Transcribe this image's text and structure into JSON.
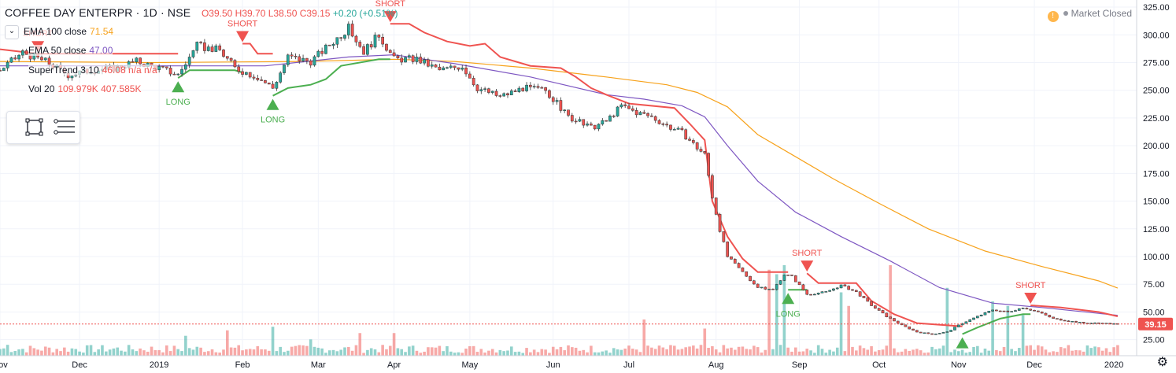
{
  "header": {
    "symbol": "COFFEE DAY ENTERPR · 1D · NSE",
    "open": "O39.50",
    "high": "H39.70",
    "low": "L38.50",
    "close": "C39.15",
    "change": "+0.20 (+0.51%)"
  },
  "legend": [
    {
      "label": "EMA 100 close",
      "value": "71.54",
      "color": "#f7a21b"
    },
    {
      "label": "EMA 50 close",
      "value": "47.00",
      "color": "#7e57c2"
    },
    {
      "label": "SuperTrend 3 10",
      "value": "46.08 n/a n/a",
      "color": "#ef5350"
    },
    {
      "label": "Vol 20",
      "value": "109.979K 407.585K",
      "color": "#ef5350"
    }
  ],
  "status": {
    "label": "Market Closed"
  },
  "colors": {
    "up": "#26a69a",
    "down": "#ef5350",
    "ema100": "#f7a21b",
    "ema50": "#7e57c2",
    "st_up": "#4caf50",
    "st_down": "#ef5350"
  },
  "icons": [
    "chevron-down-icon",
    "rectangle-tool-icon",
    "lines-tool-icon",
    "warning-icon",
    "gear-icon"
  ],
  "chart_data": {
    "type": "candlestick",
    "price_axis": {
      "min": 12,
      "max": 330,
      "ticks": [
        25,
        50,
        75,
        100,
        125,
        150,
        175,
        200,
        225,
        250,
        275,
        300,
        325
      ],
      "tick_labels": [
        "25.00",
        "50.00",
        "75.00",
        "100.00",
        "125.00",
        "150.00",
        "175.00",
        "200.00",
        "225.00",
        "250.00",
        "275.00",
        "300.00",
        "325.00"
      ]
    },
    "last_price": {
      "value": 39.15,
      "label": "39.15"
    },
    "time_axis": [
      {
        "label": "Nov",
        "t": 0
      },
      {
        "label": "Dec",
        "t": 21
      },
      {
        "label": "2019",
        "t": 42
      },
      {
        "label": "Feb",
        "t": 64
      },
      {
        "label": "Mar",
        "t": 84
      },
      {
        "label": "Apr",
        "t": 104
      },
      {
        "label": "May",
        "t": 124
      },
      {
        "label": "Jun",
        "t": 146
      },
      {
        "label": "Jul",
        "t": 166
      },
      {
        "label": "Aug",
        "t": 189
      },
      {
        "label": "Sep",
        "t": 211
      },
      {
        "label": "Oct",
        "t": 232
      },
      {
        "label": "Nov",
        "t": 253
      },
      {
        "label": "Dec",
        "t": 273
      },
      {
        "label": "2020",
        "t": 294
      }
    ],
    "t_max": 300,
    "price_series": [
      {
        "t": 0,
        "p": 268
      },
      {
        "t": 6,
        "p": 284
      },
      {
        "t": 12,
        "p": 276
      },
      {
        "t": 18,
        "p": 264
      },
      {
        "t": 24,
        "p": 268
      },
      {
        "t": 30,
        "p": 270
      },
      {
        "t": 36,
        "p": 276
      },
      {
        "t": 42,
        "p": 270
      },
      {
        "t": 47,
        "p": 264
      },
      {
        "t": 52,
        "p": 290
      },
      {
        "t": 58,
        "p": 286
      },
      {
        "t": 62,
        "p": 270
      },
      {
        "t": 68,
        "p": 262
      },
      {
        "t": 72,
        "p": 252
      },
      {
        "t": 76,
        "p": 280
      },
      {
        "t": 82,
        "p": 276
      },
      {
        "t": 86,
        "p": 288
      },
      {
        "t": 92,
        "p": 306
      },
      {
        "t": 96,
        "p": 285
      },
      {
        "t": 100,
        "p": 300
      },
      {
        "t": 104,
        "p": 278
      },
      {
        "t": 110,
        "p": 278
      },
      {
        "t": 116,
        "p": 268
      },
      {
        "t": 122,
        "p": 272
      },
      {
        "t": 126,
        "p": 252
      },
      {
        "t": 132,
        "p": 244
      },
      {
        "t": 138,
        "p": 252
      },
      {
        "t": 144,
        "p": 250
      },
      {
        "t": 150,
        "p": 226
      },
      {
        "t": 156,
        "p": 216
      },
      {
        "t": 160,
        "p": 222
      },
      {
        "t": 164,
        "p": 236
      },
      {
        "t": 168,
        "p": 230
      },
      {
        "t": 172,
        "p": 226
      },
      {
        "t": 176,
        "p": 218
      },
      {
        "t": 180,
        "p": 212
      },
      {
        "t": 184,
        "p": 198
      },
      {
        "t": 186,
        "p": 192
      },
      {
        "t": 188,
        "p": 154
      },
      {
        "t": 190,
        "p": 124
      },
      {
        "t": 192,
        "p": 100
      },
      {
        "t": 196,
        "p": 86
      },
      {
        "t": 200,
        "p": 72
      },
      {
        "t": 204,
        "p": 70
      },
      {
        "t": 207,
        "p": 84
      },
      {
        "t": 209,
        "p": 82
      },
      {
        "t": 213,
        "p": 66
      },
      {
        "t": 218,
        "p": 68
      },
      {
        "t": 222,
        "p": 74
      },
      {
        "t": 226,
        "p": 68
      },
      {
        "t": 230,
        "p": 56
      },
      {
        "t": 234,
        "p": 46
      },
      {
        "t": 238,
        "p": 38
      },
      {
        "t": 242,
        "p": 32
      },
      {
        "t": 246,
        "p": 30
      },
      {
        "t": 250,
        "p": 32
      },
      {
        "t": 254,
        "p": 40
      },
      {
        "t": 258,
        "p": 46
      },
      {
        "t": 262,
        "p": 52
      },
      {
        "t": 266,
        "p": 50
      },
      {
        "t": 270,
        "p": 54
      },
      {
        "t": 274,
        "p": 50
      },
      {
        "t": 278,
        "p": 44
      },
      {
        "t": 282,
        "p": 42
      },
      {
        "t": 286,
        "p": 40
      },
      {
        "t": 290,
        "p": 40
      },
      {
        "t": 295,
        "p": 39.15
      }
    ],
    "ema100": [
      {
        "t": 0,
        "p": 276
      },
      {
        "t": 40,
        "p": 275
      },
      {
        "t": 80,
        "p": 276
      },
      {
        "t": 104,
        "p": 278
      },
      {
        "t": 120,
        "p": 276
      },
      {
        "t": 140,
        "p": 270
      },
      {
        "t": 160,
        "p": 262
      },
      {
        "t": 176,
        "p": 255
      },
      {
        "t": 184,
        "p": 248
      },
      {
        "t": 192,
        "p": 235
      },
      {
        "t": 200,
        "p": 210
      },
      {
        "t": 210,
        "p": 190
      },
      {
        "t": 220,
        "p": 170
      },
      {
        "t": 232,
        "p": 148
      },
      {
        "t": 245,
        "p": 125
      },
      {
        "t": 260,
        "p": 105
      },
      {
        "t": 275,
        "p": 91
      },
      {
        "t": 290,
        "p": 78
      },
      {
        "t": 295,
        "p": 71.54
      }
    ],
    "ema50": [
      {
        "t": 0,
        "p": 272
      },
      {
        "t": 40,
        "p": 272
      },
      {
        "t": 70,
        "p": 272
      },
      {
        "t": 92,
        "p": 280
      },
      {
        "t": 104,
        "p": 282
      },
      {
        "t": 120,
        "p": 274
      },
      {
        "t": 140,
        "p": 262
      },
      {
        "t": 160,
        "p": 246
      },
      {
        "t": 170,
        "p": 242
      },
      {
        "t": 180,
        "p": 236
      },
      {
        "t": 186,
        "p": 226
      },
      {
        "t": 192,
        "p": 200
      },
      {
        "t": 200,
        "p": 168
      },
      {
        "t": 210,
        "p": 140
      },
      {
        "t": 222,
        "p": 118
      },
      {
        "t": 235,
        "p": 96
      },
      {
        "t": 248,
        "p": 72
      },
      {
        "t": 262,
        "p": 58
      },
      {
        "t": 275,
        "p": 54
      },
      {
        "t": 295,
        "p": 47.0
      }
    ],
    "supertrend": [
      {
        "dir": "down",
        "pts": [
          {
            "t": 0,
            "p": 287
          },
          {
            "t": 10,
            "p": 283
          },
          {
            "t": 47,
            "p": 283
          }
        ]
      },
      {
        "dir": "up",
        "pts": [
          {
            "t": 47,
            "p": 261
          },
          {
            "t": 50,
            "p": 268
          },
          {
            "t": 62,
            "p": 268
          },
          {
            "t": 64,
            "p": 266
          }
        ]
      },
      {
        "dir": "down",
        "pts": [
          {
            "t": 64,
            "p": 292
          },
          {
            "t": 66,
            "p": 292
          },
          {
            "t": 68,
            "p": 283
          },
          {
            "t": 72,
            "p": 283
          }
        ]
      },
      {
        "dir": "up",
        "pts": [
          {
            "t": 72,
            "p": 245
          },
          {
            "t": 76,
            "p": 252
          },
          {
            "t": 82,
            "p": 255
          },
          {
            "t": 86,
            "p": 260
          },
          {
            "t": 90,
            "p": 272
          },
          {
            "t": 100,
            "p": 278
          },
          {
            "t": 103,
            "p": 278
          }
        ]
      },
      {
        "dir": "down",
        "pts": [
          {
            "t": 103,
            "p": 310
          },
          {
            "t": 108,
            "p": 310
          },
          {
            "t": 112,
            "p": 302
          },
          {
            "t": 118,
            "p": 294
          },
          {
            "t": 124,
            "p": 290
          },
          {
            "t": 128,
            "p": 292
          },
          {
            "t": 132,
            "p": 280
          },
          {
            "t": 140,
            "p": 272
          },
          {
            "t": 148,
            "p": 270
          },
          {
            "t": 152,
            "p": 262
          },
          {
            "t": 156,
            "p": 252
          },
          {
            "t": 160,
            "p": 246
          },
          {
            "t": 166,
            "p": 238
          },
          {
            "t": 178,
            "p": 234
          },
          {
            "t": 182,
            "p": 220
          },
          {
            "t": 186,
            "p": 205
          },
          {
            "t": 188,
            "p": 150
          },
          {
            "t": 192,
            "p": 118
          },
          {
            "t": 196,
            "p": 98
          },
          {
            "t": 200,
            "p": 86
          },
          {
            "t": 208,
            "p": 86
          }
        ]
      },
      {
        "dir": "up",
        "pts": [
          {
            "t": 208,
            "p": 70
          },
          {
            "t": 213,
            "p": 70
          }
        ]
      },
      {
        "dir": "down",
        "pts": [
          {
            "t": 213,
            "p": 85
          },
          {
            "t": 216,
            "p": 76
          },
          {
            "t": 226,
            "p": 76
          },
          {
            "t": 230,
            "p": 60
          },
          {
            "t": 236,
            "p": 48
          },
          {
            "t": 242,
            "p": 40
          },
          {
            "t": 250,
            "p": 38
          },
          {
            "t": 254,
            "p": 37
          }
        ]
      },
      {
        "dir": "up",
        "pts": [
          {
            "t": 254,
            "p": 30
          },
          {
            "t": 258,
            "p": 36
          },
          {
            "t": 264,
            "p": 44
          },
          {
            "t": 270,
            "p": 48
          },
          {
            "t": 272,
            "p": 48
          }
        ]
      },
      {
        "dir": "down",
        "pts": [
          {
            "t": 272,
            "p": 56
          },
          {
            "t": 280,
            "p": 54
          },
          {
            "t": 290,
            "p": 50
          },
          {
            "t": 295,
            "p": 46.08
          }
        ]
      }
    ],
    "signals": [
      {
        "type": "short",
        "t": 10,
        "p": 283,
        "label": "SHORT"
      },
      {
        "type": "long",
        "t": 47,
        "p": 261,
        "label": "LONG"
      },
      {
        "type": "short",
        "t": 64,
        "p": 292,
        "label": "SHORT"
      },
      {
        "type": "long",
        "t": 72,
        "p": 245,
        "label": "LONG"
      },
      {
        "type": "short",
        "t": 103,
        "p": 310,
        "label": "SHORT"
      },
      {
        "type": "long",
        "t": 208,
        "p": 70,
        "label": "LONG"
      },
      {
        "type": "short",
        "t": 213,
        "p": 85,
        "label": "SHORT"
      },
      {
        "type": "long",
        "t": 254,
        "p": 30,
        "label": ""
      },
      {
        "type": "short",
        "t": 272,
        "p": 56,
        "label": "SHORT"
      }
    ],
    "volume_spikes": [
      {
        "t": 2,
        "v": 0.12
      },
      {
        "t": 49,
        "v": 0.22
      },
      {
        "t": 60,
        "v": 0.28
      },
      {
        "t": 72,
        "v": 0.32
      },
      {
        "t": 82,
        "v": 0.18
      },
      {
        "t": 95,
        "v": 0.25
      },
      {
        "t": 104,
        "v": 0.25
      },
      {
        "t": 170,
        "v": 0.4
      },
      {
        "t": 186,
        "v": 0.3
      },
      {
        "t": 203,
        "v": 0.95
      },
      {
        "t": 205,
        "v": 0.9
      },
      {
        "t": 207,
        "v": 1.0
      },
      {
        "t": 222,
        "v": 0.7
      },
      {
        "t": 224,
        "v": 0.55
      },
      {
        "t": 235,
        "v": 1.0
      },
      {
        "t": 250,
        "v": 0.75
      },
      {
        "t": 262,
        "v": 0.6
      },
      {
        "t": 266,
        "v": 0.55
      },
      {
        "t": 270,
        "v": 0.45
      }
    ]
  }
}
